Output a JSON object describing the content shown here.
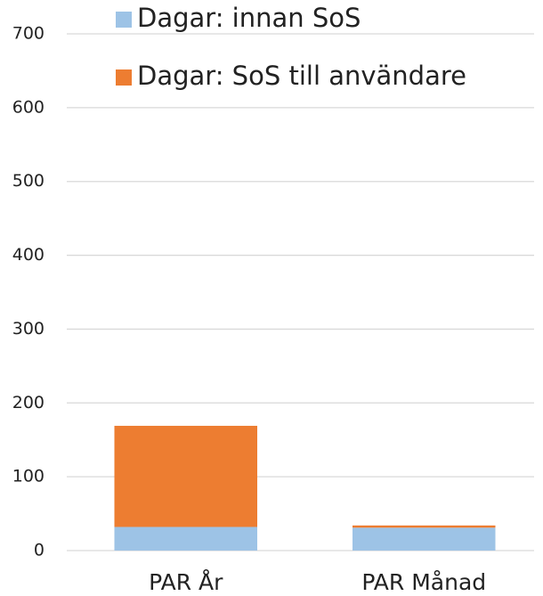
{
  "chart_data": {
    "type": "stacked_bar",
    "categories": [
      "PAR År",
      "PAR Månad"
    ],
    "series": [
      {
        "name": "Dagar: innan SoS",
        "color": "#9dc3e6",
        "values": [
          32,
          31
        ]
      },
      {
        "name": "Dagar: SoS till användare",
        "color": "#ed7d31",
        "values": [
          137,
          3
        ]
      }
    ],
    "ylim": [
      0,
      700
    ],
    "yticks": [
      0,
      100,
      200,
      300,
      400,
      500,
      600,
      700
    ],
    "grid": true
  }
}
